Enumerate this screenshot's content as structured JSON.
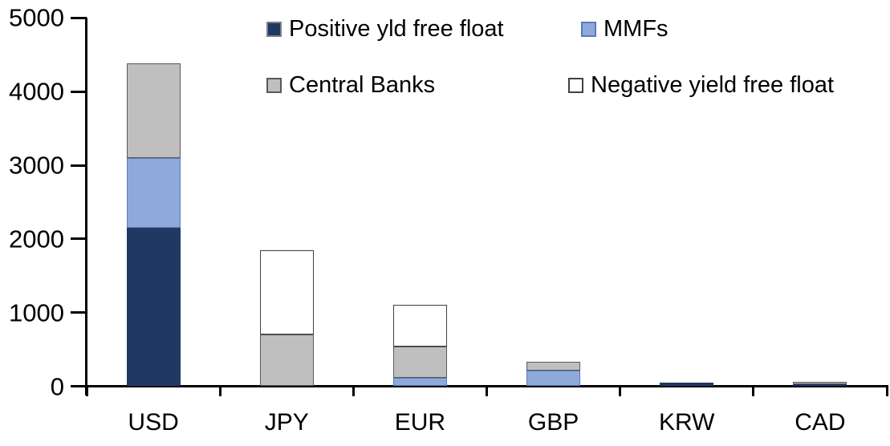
{
  "chart_data": {
    "type": "bar",
    "stacked": true,
    "title": "",
    "xlabel": "",
    "ylabel": "",
    "categories": [
      "USD",
      "JPY",
      "EUR",
      "GBP",
      "KRW",
      "CAD"
    ],
    "series": [
      {
        "name": "Positive yld free float",
        "color": "#203864",
        "border_color": "#203864",
        "values": [
          2150,
          0,
          0,
          0,
          45,
          30
        ]
      },
      {
        "name": "MMFs",
        "color": "#8EAADB",
        "border_color": "#5B7BB5",
        "values": [
          950,
          0,
          110,
          210,
          0,
          0
        ]
      },
      {
        "name": "Central Banks",
        "color": "#BFBFBF",
        "border_color": "#595959",
        "values": [
          1280,
          700,
          430,
          120,
          0,
          35
        ]
      },
      {
        "name": "Negative yield free float",
        "color": "#FFFFFF",
        "border_color": "#404040",
        "values": [
          0,
          1150,
          570,
          0,
          0,
          0
        ]
      }
    ],
    "ylim": [
      0,
      5000
    ],
    "ytick_labels": [
      "0",
      "1000",
      "2000",
      "3000",
      "4000",
      "5000"
    ],
    "ytick_values": [
      0,
      1000,
      2000,
      3000,
      4000,
      5000
    ],
    "legend_position": "top",
    "grid": false,
    "axis_color": "#000000",
    "background_color": "#FFFFFF"
  }
}
